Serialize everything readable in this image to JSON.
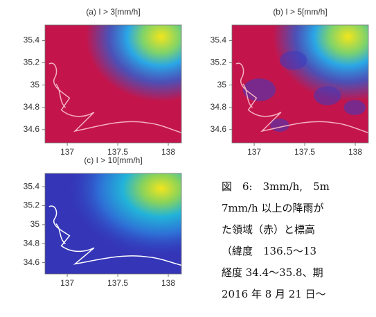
{
  "figure": {
    "panels": [
      {
        "title": "(a) I > 3[mm/h]",
        "xlim": [
          136.78,
          138.13
        ],
        "ylim": [
          34.48,
          35.54
        ],
        "xticks": [
          137,
          137.5,
          138
        ],
        "yticks": [
          35.4,
          35.2,
          35,
          34.8,
          34.6
        ]
      },
      {
        "title": "(b) I > 5[mm/h]",
        "xlim": [
          136.78,
          138.13
        ],
        "ylim": [
          34.48,
          35.54
        ],
        "xticks": [
          137,
          137.5,
          138
        ],
        "yticks": [
          35.4,
          35.2,
          35,
          34.8,
          34.6
        ]
      },
      {
        "title": "(c) I > 10[mm/h]",
        "xlim": [
          136.78,
          138.13
        ],
        "ylim": [
          34.48,
          35.54
        ],
        "xticks": [
          137,
          137.5,
          138
        ],
        "yticks": [
          35.4,
          35.2,
          35,
          34.8,
          34.6
        ]
      }
    ],
    "caption_lines": [
      "図　6:　3mm/h,　5m",
      "7mm/h 以上の降雨が",
      "た領域（赤）と標高",
      "（緯度　136.5～13",
      "経度 34.4～35.8、期",
      "2016 年 8 月 21 日～"
    ]
  }
}
